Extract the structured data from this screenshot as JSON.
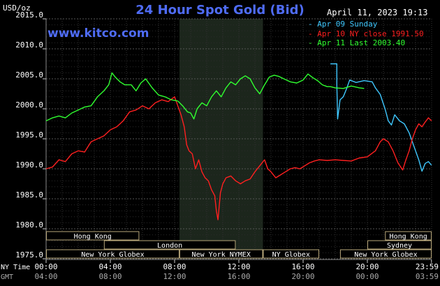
{
  "header": {
    "title": "24 Hour Spot Gold (Bid)",
    "site": "www.kitco.com",
    "unit": "USD/oz",
    "datestamp": "April 11, 2023 19:13"
  },
  "chart_data": {
    "type": "line",
    "title": "24 Hour Spot Gold (Bid)",
    "ylabel": "USD/oz",
    "ylim": [
      1975,
      2015
    ],
    "yticks": [
      "2015.0",
      "2010.0",
      "2005.0",
      "2000.0",
      "1995.0",
      "1990.0",
      "1985.0",
      "1980.0",
      "1975.0"
    ],
    "xlim": [
      0,
      24
    ],
    "xaxis_rows": [
      {
        "label": "NY Time",
        "ticks": [
          "00:00",
          "04:00",
          "08:00",
          "12:00",
          "16:00",
          "20:00",
          "23:59"
        ],
        "color": "#ffffff"
      },
      {
        "label": "GMT",
        "ticks": [
          "04:00",
          "08:00",
          "12:00",
          "16:00",
          "20:00",
          "00:00",
          "03:59"
        ],
        "color": "#aaaaaa"
      }
    ],
    "shaded_session": {
      "start": 8.3,
      "end": 13.5,
      "color": "#1c261c"
    },
    "grid": true,
    "legend_position": "top-right",
    "series": [
      {
        "name": "Apr 09 Sunday",
        "legend": "- Apr 09 Sunday",
        "color": "#3fc8ff",
        "points": [
          [
            17.7,
            2007.5
          ],
          [
            18.1,
            2007.5
          ],
          [
            18.1,
            2004.0
          ],
          [
            18.15,
            1998.3
          ],
          [
            18.3,
            2001.5
          ],
          [
            18.5,
            2002.0
          ],
          [
            18.7,
            2003.3
          ],
          [
            18.9,
            2004.8
          ],
          [
            19.3,
            2004.4
          ],
          [
            19.8,
            2004.7
          ],
          [
            20.3,
            2004.5
          ],
          [
            20.5,
            2003.5
          ],
          [
            20.8,
            2002.4
          ],
          [
            21.1,
            2000.0
          ],
          [
            21.3,
            1998.0
          ],
          [
            21.5,
            1997.3
          ],
          [
            21.7,
            1999.0
          ],
          [
            22.0,
            1998.0
          ],
          [
            22.3,
            1997.5
          ],
          [
            22.6,
            1996.0
          ],
          [
            22.8,
            1994.5
          ],
          [
            23.0,
            1993.0
          ],
          [
            23.2,
            1991.5
          ],
          [
            23.4,
            1989.6
          ],
          [
            23.6,
            1990.9
          ],
          [
            23.8,
            1991.2
          ],
          [
            23.99,
            1990.6
          ]
        ]
      },
      {
        "name": "Apr 10 NY close",
        "legend": "- Apr 10 NY close 1991.50",
        "color": "#ff2020",
        "points": [
          [
            0,
            1990.0
          ],
          [
            0.4,
            1990.3
          ],
          [
            0.8,
            1991.5
          ],
          [
            1.2,
            1991.2
          ],
          [
            1.6,
            1992.5
          ],
          [
            2.0,
            1993.0
          ],
          [
            2.4,
            1992.8
          ],
          [
            2.8,
            1994.5
          ],
          [
            3.2,
            1995.0
          ],
          [
            3.6,
            1995.5
          ],
          [
            4.0,
            1996.5
          ],
          [
            4.4,
            1997.0
          ],
          [
            4.8,
            1998.0
          ],
          [
            5.2,
            1999.5
          ],
          [
            5.6,
            1999.8
          ],
          [
            6.0,
            2000.5
          ],
          [
            6.4,
            2000.0
          ],
          [
            6.8,
            2001.0
          ],
          [
            7.2,
            2001.5
          ],
          [
            7.6,
            2001.2
          ],
          [
            8.0,
            2002.0
          ],
          [
            8.2,
            2000.5
          ],
          [
            8.4,
            1999.0
          ],
          [
            8.6,
            1997.0
          ],
          [
            8.75,
            1994.0
          ],
          [
            8.9,
            1993.0
          ],
          [
            9.1,
            1992.5
          ],
          [
            9.3,
            1990.0
          ],
          [
            9.5,
            1991.5
          ],
          [
            9.7,
            1989.5
          ],
          [
            9.9,
            1988.5
          ],
          [
            10.1,
            1988.0
          ],
          [
            10.3,
            1986.5
          ],
          [
            10.5,
            1985.5
          ],
          [
            10.6,
            1983.0
          ],
          [
            10.7,
            1981.5
          ],
          [
            10.85,
            1986.0
          ],
          [
            11.0,
            1987.5
          ],
          [
            11.2,
            1988.5
          ],
          [
            11.5,
            1988.8
          ],
          [
            11.8,
            1988.0
          ],
          [
            12.1,
            1987.5
          ],
          [
            12.4,
            1988.0
          ],
          [
            12.7,
            1988.3
          ],
          [
            13.0,
            1989.5
          ],
          [
            13.3,
            1990.5
          ],
          [
            13.6,
            1991.5
          ],
          [
            13.8,
            1990.0
          ],
          [
            14.0,
            1989.5
          ],
          [
            14.3,
            1988.5
          ],
          [
            14.6,
            1989.0
          ],
          [
            14.9,
            1989.5
          ],
          [
            15.2,
            1990.0
          ],
          [
            15.5,
            1990.2
          ],
          [
            15.8,
            1990.0
          ],
          [
            16.1,
            1990.5
          ],
          [
            16.4,
            1991.0
          ],
          [
            16.7,
            1991.3
          ],
          [
            17.0,
            1991.5
          ],
          [
            17.5,
            1991.4
          ],
          [
            18.0,
            1991.5
          ],
          [
            18.5,
            1991.4
          ],
          [
            19.0,
            1991.3
          ],
          [
            19.5,
            1991.8
          ],
          [
            20.0,
            1992.0
          ],
          [
            20.5,
            1993.0
          ],
          [
            20.8,
            1994.5
          ],
          [
            21.0,
            1995.0
          ],
          [
            21.3,
            1994.5
          ],
          [
            21.6,
            1993.0
          ],
          [
            21.9,
            1991.0
          ],
          [
            22.2,
            1989.8
          ],
          [
            22.4,
            1991.5
          ],
          [
            22.6,
            1993.0
          ],
          [
            22.8,
            1995.0
          ],
          [
            23.0,
            1996.5
          ],
          [
            23.2,
            1997.5
          ],
          [
            23.4,
            1997.0
          ],
          [
            23.6,
            1997.8
          ],
          [
            23.8,
            1998.5
          ],
          [
            23.99,
            1998.0
          ]
        ]
      },
      {
        "name": "Apr 11 Last",
        "legend": "- Apr 11 Last 2003.40",
        "color": "#30ff30",
        "points": [
          [
            0,
            1998.0
          ],
          [
            0.4,
            1998.5
          ],
          [
            0.8,
            1998.8
          ],
          [
            1.2,
            1998.5
          ],
          [
            1.6,
            1999.3
          ],
          [
            2.0,
            1999.8
          ],
          [
            2.4,
            2000.3
          ],
          [
            2.8,
            2000.5
          ],
          [
            3.2,
            2002.0
          ],
          [
            3.6,
            2003.0
          ],
          [
            3.9,
            2004.0
          ],
          [
            4.1,
            2006.0
          ],
          [
            4.3,
            2005.3
          ],
          [
            4.6,
            2004.5
          ],
          [
            4.9,
            2004.0
          ],
          [
            5.3,
            2004.0
          ],
          [
            5.6,
            2003.0
          ],
          [
            5.9,
            2004.3
          ],
          [
            6.2,
            2005.0
          ],
          [
            6.6,
            2003.5
          ],
          [
            7.0,
            2002.3
          ],
          [
            7.4,
            2002.0
          ],
          [
            7.8,
            2001.5
          ],
          [
            8.2,
            2001.3
          ],
          [
            8.5,
            2000.5
          ],
          [
            8.8,
            1999.5
          ],
          [
            9.0,
            1999.3
          ],
          [
            9.2,
            1998.3
          ],
          [
            9.4,
            2000.0
          ],
          [
            9.7,
            2001.0
          ],
          [
            10.0,
            2000.5
          ],
          [
            10.3,
            2002.0
          ],
          [
            10.6,
            2003.0
          ],
          [
            10.9,
            2002.0
          ],
          [
            11.2,
            2003.5
          ],
          [
            11.5,
            2004.5
          ],
          [
            11.8,
            2004.0
          ],
          [
            12.1,
            2005.0
          ],
          [
            12.4,
            2005.5
          ],
          [
            12.7,
            2005.0
          ],
          [
            13.0,
            2003.5
          ],
          [
            13.3,
            2002.5
          ],
          [
            13.6,
            2004.0
          ],
          [
            13.9,
            2005.3
          ],
          [
            14.2,
            2005.6
          ],
          [
            14.5,
            2005.4
          ],
          [
            14.8,
            2005.0
          ],
          [
            15.2,
            2004.5
          ],
          [
            15.6,
            2004.3
          ],
          [
            16.0,
            2004.8
          ],
          [
            16.3,
            2005.8
          ],
          [
            16.6,
            2005.2
          ],
          [
            16.9,
            2004.7
          ],
          [
            17.2,
            2004.0
          ],
          [
            17.5,
            2003.7
          ],
          [
            17.7,
            2003.7
          ],
          [
            18.0,
            2003.5
          ],
          [
            18.5,
            2003.4
          ],
          [
            19.0,
            2003.8
          ],
          [
            19.5,
            2003.5
          ],
          [
            19.8,
            2003.4
          ]
        ]
      }
    ],
    "session_bars": {
      "row1": [
        {
          "label": "Hong Kong",
          "start": 0,
          "end": 5.8
        },
        {
          "label": "Hong Kong",
          "start": 21.1,
          "end": 24
        }
      ],
      "row2": [
        {
          "label": "London",
          "start": 3.6,
          "end": 11.8
        },
        {
          "label": "Sydney",
          "start": 20.0,
          "end": 24
        }
      ],
      "row3": [
        {
          "label": "New York Globex",
          "start": 0,
          "end": 8.3
        },
        {
          "label": "New York NYMEX",
          "start": 8.3,
          "end": 13.5
        },
        {
          "label": "NY Globex",
          "start": 13.5,
          "end": 17.0
        },
        {
          "label": "New York Globex",
          "start": 18.3,
          "end": 24
        }
      ]
    }
  }
}
